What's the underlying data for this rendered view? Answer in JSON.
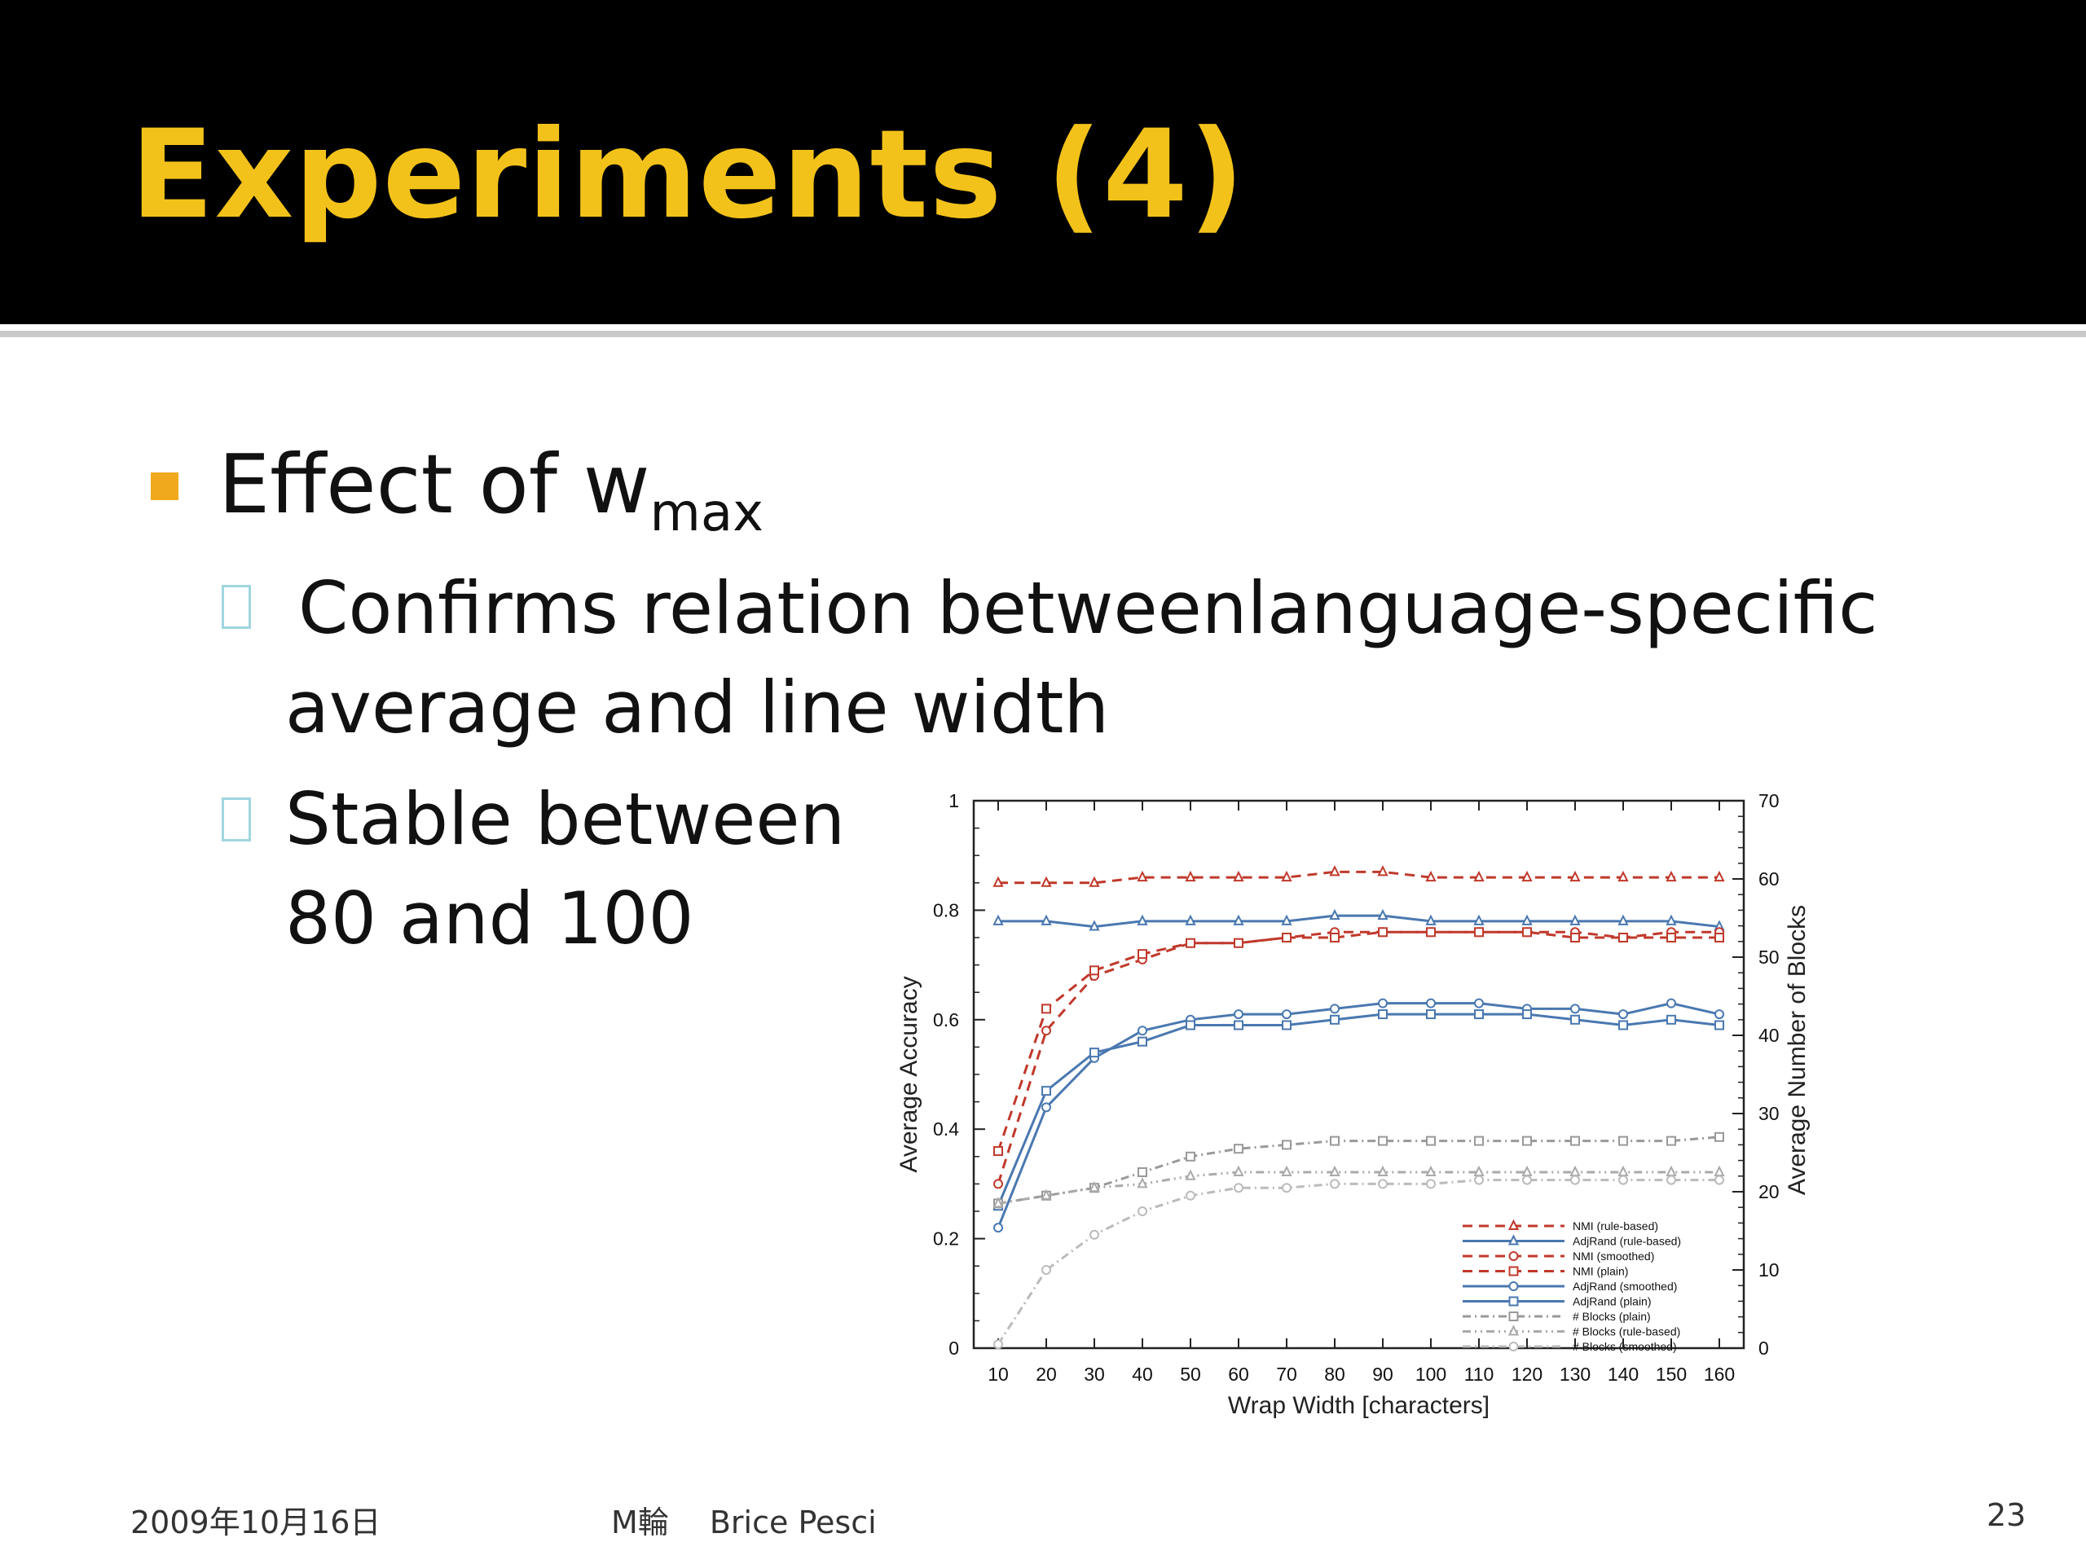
{
  "slide": {
    "title": "Experiments (4)",
    "bullet_main": {
      "text": "Effect of w",
      "subscript": "max"
    },
    "sub_bullets": [
      {
        "lines": [
          "Confirms relation betweenlanguage-specific",
          "average and line width"
        ]
      },
      {
        "lines": [
          "Stable between",
          "80 and 100"
        ]
      }
    ],
    "footer": {
      "date": "2009年10月16日",
      "center": "M輪　 Brice Pesci",
      "page": "23"
    }
  },
  "chart_data": {
    "type": "line",
    "xlabel": "Wrap Width [characters]",
    "ylabel_left": "Average Accuracy",
    "ylabel_right": "Average Number of Blocks",
    "x": [
      10,
      20,
      30,
      40,
      50,
      60,
      70,
      80,
      90,
      100,
      110,
      120,
      130,
      140,
      150,
      160
    ],
    "ylim_left": [
      0,
      1
    ],
    "yticks_left": [
      "0",
      "0.2",
      "0.4",
      "0.6",
      "0.8",
      "1"
    ],
    "ylim_right": [
      0,
      70
    ],
    "yticks_right": [
      "0",
      "10",
      "20",
      "30",
      "40",
      "50",
      "60",
      "70"
    ],
    "legend_position": "bottom-right",
    "series": [
      {
        "name": "NMI (rule-based)",
        "axis": "left",
        "color": "#c0392b",
        "dash": "12,8",
        "marker": "triangle",
        "values": [
          0.85,
          0.85,
          0.85,
          0.86,
          0.86,
          0.86,
          0.86,
          0.87,
          0.87,
          0.86,
          0.86,
          0.86,
          0.86,
          0.86,
          0.86,
          0.86
        ]
      },
      {
        "name": "AdjRand (rule-based)",
        "axis": "left",
        "color": "#4a78b0",
        "dash": "",
        "marker": "triangle",
        "values": [
          0.78,
          0.78,
          0.77,
          0.78,
          0.78,
          0.78,
          0.78,
          0.79,
          0.79,
          0.78,
          0.78,
          0.78,
          0.78,
          0.78,
          0.78,
          0.77
        ]
      },
      {
        "name": "NMI (smoothed)",
        "axis": "left",
        "color": "#c0392b",
        "dash": "12,8",
        "marker": "circle",
        "values": [
          0.3,
          0.58,
          0.68,
          0.71,
          0.74,
          0.74,
          0.75,
          0.76,
          0.76,
          0.76,
          0.76,
          0.76,
          0.76,
          0.75,
          0.76,
          0.76
        ]
      },
      {
        "name": "NMI (plain)",
        "axis": "left",
        "color": "#c0392b",
        "dash": "12,8",
        "marker": "square",
        "values": [
          0.36,
          0.62,
          0.69,
          0.72,
          0.74,
          0.74,
          0.75,
          0.75,
          0.76,
          0.76,
          0.76,
          0.76,
          0.75,
          0.75,
          0.75,
          0.75
        ]
      },
      {
        "name": "AdjRand (smoothed)",
        "axis": "left",
        "color": "#4a78b0",
        "dash": "",
        "marker": "circle",
        "values": [
          0.22,
          0.44,
          0.53,
          0.58,
          0.6,
          0.61,
          0.61,
          0.62,
          0.63,
          0.63,
          0.63,
          0.62,
          0.62,
          0.61,
          0.63,
          0.61
        ]
      },
      {
        "name": "AdjRand (plain)",
        "axis": "left",
        "color": "#4a78b0",
        "dash": "",
        "marker": "square",
        "values": [
          0.26,
          0.47,
          0.54,
          0.56,
          0.59,
          0.59,
          0.59,
          0.6,
          0.61,
          0.61,
          0.61,
          0.61,
          0.6,
          0.59,
          0.6,
          0.59
        ]
      },
      {
        "name": "# Blocks (plain)",
        "axis": "right",
        "color": "#999999",
        "dash": "10,5,2,5",
        "marker": "square",
        "values": [
          18.5,
          19.5,
          20.5,
          22.5,
          24.5,
          25.5,
          26,
          26.5,
          26.5,
          26.5,
          26.5,
          26.5,
          26.5,
          26.5,
          26.5,
          27
        ]
      },
      {
        "name": "# Blocks (rule-based)",
        "axis": "right",
        "color": "#aaaaaa",
        "dash": "10,5,2,5,2,5",
        "marker": "triangle",
        "values": [
          18.5,
          19.5,
          20.5,
          21,
          22,
          22.5,
          22.5,
          22.5,
          22.5,
          22.5,
          22.5,
          22.5,
          22.5,
          22.5,
          22.5,
          22.5
        ]
      },
      {
        "name": "# Blocks (smoothed)",
        "axis": "right",
        "color": "#bbbbbb",
        "dash": "10,5,2,5",
        "marker": "circle",
        "values": [
          0.5,
          10,
          14.5,
          17.5,
          19.5,
          20.5,
          20.5,
          21,
          21,
          21,
          21.5,
          21.5,
          21.5,
          21.5,
          21.5,
          21.5
        ]
      }
    ]
  }
}
